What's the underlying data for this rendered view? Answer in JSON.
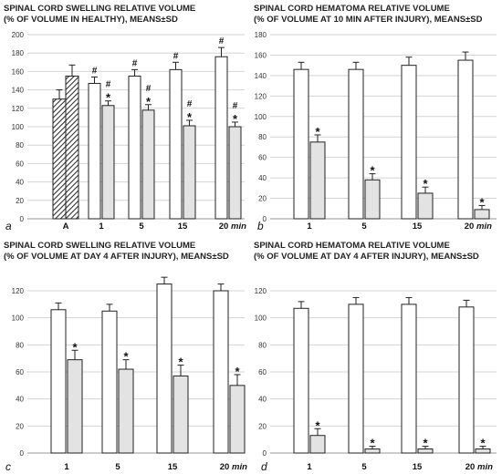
{
  "chart_data": [
    {
      "type": "bar",
      "panel_letter": "a",
      "title_lines": [
        "SPINAL CORD SWELLING RELATIVE VOLUME",
        "(% OF VOLUME IN HEALTHY), MEANS±SD"
      ],
      "ylim": [
        0,
        200
      ],
      "yticks": [
        0,
        20,
        40,
        60,
        80,
        100,
        120,
        140,
        160,
        180,
        200
      ],
      "grid": true,
      "x_unit": "min",
      "categories": [
        "A",
        "1",
        "5",
        "15",
        "20"
      ],
      "series": [
        {
          "fill": "hatched",
          "values": [
            130,
            null,
            null,
            null,
            null
          ],
          "errors": [
            10,
            null,
            null,
            null,
            null
          ],
          "markers": [
            "",
            "",
            "",
            "",
            ""
          ]
        },
        {
          "fill": "hatched",
          "values": [
            155,
            null,
            null,
            null,
            null
          ],
          "errors": [
            12,
            null,
            null,
            null,
            null
          ],
          "markers": [
            "",
            "",
            "",
            "",
            ""
          ]
        },
        {
          "fill": "white",
          "values": [
            null,
            147,
            155,
            162,
            176
          ],
          "errors": [
            null,
            7,
            7,
            8,
            10
          ],
          "markers": [
            "",
            "#",
            "#",
            "#",
            "#"
          ]
        },
        {
          "fill": "gray",
          "values": [
            null,
            123,
            118,
            101,
            100
          ],
          "errors": [
            null,
            5,
            6,
            6,
            5
          ],
          "markers": [
            "",
            "#\n*",
            "#\n*",
            "#\n*",
            "#\n*"
          ]
        }
      ]
    },
    {
      "type": "bar",
      "panel_letter": "b",
      "title_lines": [
        "SPINAL CORD HEMATOMA RELATIVE VOLUME",
        "(% OF VOLUME AT 10 MIN AFTER INJURY), MEANS±SD"
      ],
      "ylim": [
        0,
        180
      ],
      "yticks": [
        0,
        20,
        40,
        60,
        80,
        100,
        120,
        140,
        160,
        180
      ],
      "grid": true,
      "x_unit": "min",
      "categories": [
        "1",
        "5",
        "15",
        "20"
      ],
      "series": [
        {
          "fill": "white",
          "values": [
            146,
            146,
            150,
            155
          ],
          "errors": [
            7,
            7,
            8,
            8
          ],
          "markers": [
            "",
            "",
            "",
            ""
          ]
        },
        {
          "fill": "gray",
          "values": [
            75,
            38,
            25,
            9
          ],
          "errors": [
            7,
            6,
            6,
            4
          ],
          "markers": [
            "*",
            "*",
            "*",
            "*"
          ]
        }
      ]
    },
    {
      "type": "bar",
      "panel_letter": "c",
      "title_lines": [
        "SPINAL CORD SWELLING RELATIVE VOLUME",
        "(% OF VOLUME AT DAY 4 AFTER INJURY), MEANS±SD"
      ],
      "ylim": [
        0,
        120
      ],
      "yticks": [
        0,
        20,
        40,
        60,
        80,
        100,
        120
      ],
      "grid": true,
      "x_unit": "min",
      "categories": [
        "1",
        "5",
        "15",
        "20"
      ],
      "series": [
        {
          "fill": "white",
          "values": [
            106,
            105,
            125,
            120
          ],
          "errors": [
            5,
            5,
            5,
            5
          ],
          "markers": [
            "",
            "",
            "",
            ""
          ]
        },
        {
          "fill": "gray",
          "values": [
            69,
            62,
            57,
            50
          ],
          "errors": [
            7,
            7,
            8,
            8
          ],
          "markers": [
            "*",
            "*",
            "*",
            "*"
          ]
        }
      ]
    },
    {
      "type": "bar",
      "panel_letter": "d",
      "title_lines": [
        "SPINAL CORD HEMATOMA RELATIVE VOLUME",
        "(% OF VOLUME AT DAY 4 AFTER INJURY), MEANS±SD"
      ],
      "ylim": [
        0,
        120
      ],
      "yticks": [
        0,
        20,
        40,
        60,
        80,
        100,
        120
      ],
      "grid": true,
      "x_unit": "min",
      "categories": [
        "1",
        "5",
        "15",
        "20"
      ],
      "series": [
        {
          "fill": "white",
          "values": [
            107,
            110,
            110,
            108
          ],
          "errors": [
            5,
            5,
            5,
            5
          ],
          "markers": [
            "",
            "",
            "",
            ""
          ]
        },
        {
          "fill": "gray",
          "values": [
            13,
            3,
            3,
            3
          ],
          "errors": [
            5,
            2,
            2,
            2
          ],
          "markers": [
            "*",
            "*",
            "*",
            "*"
          ]
        }
      ]
    }
  ]
}
